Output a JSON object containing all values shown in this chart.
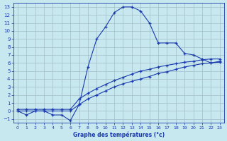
{
  "title": "Graphe des températures (°c)",
  "bg_color": "#c8e8f0",
  "line_color": "#1a3aad",
  "grid_color": "#a0bcc8",
  "xlim": [
    -0.5,
    23.5
  ],
  "ylim": [
    -1.5,
    13.5
  ],
  "yticks": [
    -1,
    0,
    1,
    2,
    3,
    4,
    5,
    6,
    7,
    8,
    9,
    10,
    11,
    12,
    13
  ],
  "xticks": [
    0,
    1,
    2,
    3,
    4,
    5,
    6,
    7,
    8,
    9,
    10,
    11,
    12,
    13,
    14,
    15,
    16,
    17,
    18,
    19,
    20,
    21,
    22,
    23
  ],
  "line1_x": [
    0,
    1,
    2,
    3,
    4,
    5,
    6,
    7,
    8,
    9,
    10,
    11,
    12,
    13,
    14,
    15,
    16,
    17,
    18,
    19,
    20,
    21,
    22,
    23
  ],
  "line1_y": [
    0.0,
    -0.5,
    0.0,
    0.0,
    -0.5,
    -0.5,
    -1.2,
    0.8,
    5.5,
    9.0,
    10.5,
    12.3,
    13.0,
    13.0,
    12.5,
    11.0,
    8.5,
    8.5,
    8.5,
    7.2,
    7.0,
    6.5,
    6.0,
    6.2
  ],
  "line2_x": [
    0,
    1,
    2,
    3,
    4,
    5,
    6,
    7,
    8,
    9,
    10,
    11,
    12,
    13,
    14,
    15,
    16,
    17,
    18,
    19,
    20,
    21,
    22,
    23
  ],
  "line2_y": [
    0.2,
    0.2,
    0.2,
    0.2,
    0.2,
    0.2,
    0.2,
    1.5,
    2.2,
    2.8,
    3.3,
    3.8,
    4.2,
    4.6,
    5.0,
    5.2,
    5.5,
    5.7,
    5.9,
    6.1,
    6.2,
    6.4,
    6.5,
    6.5
  ],
  "line3_x": [
    0,
    1,
    2,
    3,
    4,
    5,
    6,
    7,
    8,
    9,
    10,
    11,
    12,
    13,
    14,
    15,
    16,
    17,
    18,
    19,
    20,
    21,
    22,
    23
  ],
  "line3_y": [
    0.0,
    0.0,
    0.0,
    0.0,
    0.0,
    0.0,
    0.0,
    0.8,
    1.5,
    2.0,
    2.5,
    3.0,
    3.4,
    3.7,
    4.0,
    4.3,
    4.7,
    4.9,
    5.2,
    5.5,
    5.7,
    5.9,
    6.0,
    6.1
  ],
  "marker": "+",
  "markersize": 3,
  "linewidth": 0.8,
  "markeredgewidth": 0.9,
  "xlabel_fontsize": 5.5,
  "tick_fontsize_x": 4.5,
  "tick_fontsize_y": 5.0
}
